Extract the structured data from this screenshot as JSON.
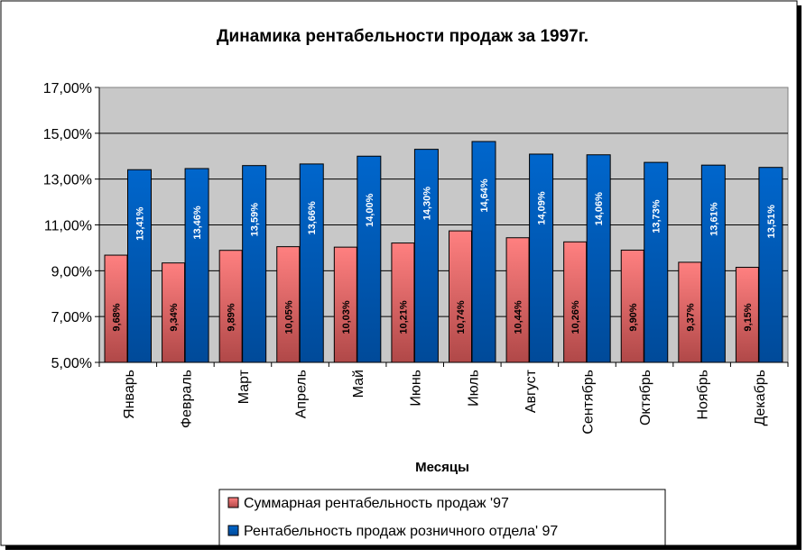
{
  "chart_data": {
    "type": "bar",
    "title": "Динамика рентабельности продаж за 1997г.",
    "xlabel": "Месяцы",
    "ylabel": "",
    "ylim": [
      5,
      17
    ],
    "yticks": [
      "5,00%",
      "7,00%",
      "9,00%",
      "11,00%",
      "13,00%",
      "15,00%",
      "17,00%"
    ],
    "grid": true,
    "legend_position": "bottom",
    "categories": [
      "Январь",
      "Февраль",
      "Март",
      "Апрель",
      "Май",
      "Июнь",
      "Июль",
      "Август",
      "Сентябрь",
      "Октябрь",
      "Ноябрь",
      "Декабрь"
    ],
    "series": [
      {
        "name": "Суммарная рентабельность продаж '97",
        "color": "#ff8080",
        "values": [
          9.68,
          9.34,
          9.89,
          10.05,
          10.03,
          10.21,
          10.74,
          10.44,
          10.26,
          9.9,
          9.37,
          9.15
        ],
        "labels": [
          "9,68%",
          "9,34%",
          "9,89%",
          "10,05%",
          "10,03%",
          "10,21%",
          "10,74%",
          "10,44%",
          "10,26%",
          "9,90%",
          "9,37%",
          "9,15%"
        ]
      },
      {
        "name": "Рентабельность продаж розничного отдела' 97",
        "color": "#0066cc",
        "values": [
          13.41,
          13.46,
          13.59,
          13.66,
          14.0,
          14.3,
          14.64,
          14.09,
          14.06,
          13.73,
          13.61,
          13.51
        ],
        "labels": [
          "13,41%",
          "13,46%",
          "13,59%",
          "13,66%",
          "14,00%",
          "14,30%",
          "14,64%",
          "14,09%",
          "14,06%",
          "13,73%",
          "13,61%",
          "13,51%"
        ]
      }
    ]
  }
}
